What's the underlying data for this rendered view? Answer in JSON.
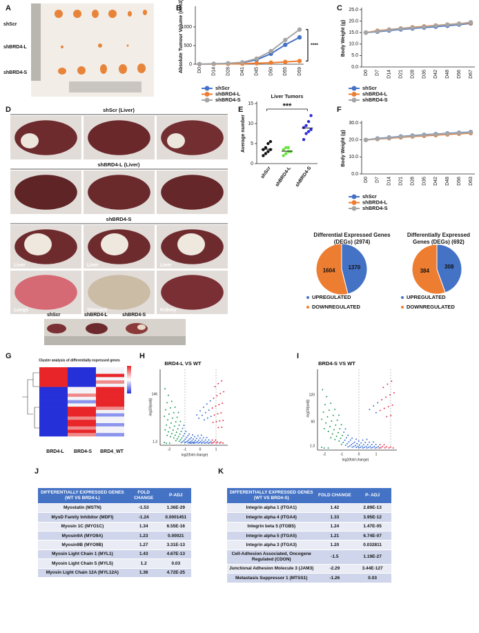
{
  "panel_labels": [
    "A",
    "B",
    "C",
    "D",
    "E",
    "F",
    "G",
    "H",
    "I",
    "J",
    "K"
  ],
  "photo_a": {
    "rows": [
      "shScr",
      "shBRD4-L",
      "shBRD4-S"
    ]
  },
  "photo_d": {
    "titles": [
      "shScr (Liver)",
      "shBRD4-L (Liver)",
      "shBRD4-S"
    ],
    "tissues": [
      "Liver",
      "Liver",
      "Liver",
      "Lungs",
      "Stomach",
      "Kidney"
    ],
    "bottom": [
      "shScr",
      "shBRD4-L",
      "shBRD4-S"
    ]
  },
  "heatmap": {
    "title": "Cluster analysis of differentially expressed genes",
    "columns": [
      "BRD4-L",
      "BRD4-S",
      "BRD4_WT"
    ]
  },
  "volcano_h": {
    "title": "BRD4-L VS WT",
    "y_label": "-log10(padj)",
    "x_label": "log2(fold change)",
    "yticks": [
      "146",
      "1.3"
    ],
    "xticks": [
      "-2",
      "-1",
      "0",
      "1"
    ]
  },
  "volcano_i": {
    "title": "BRD4-S VS WT",
    "y_label": "-log10(padj)",
    "x_label": "log2(fold change)",
    "yticks": [
      "120",
      "60",
      "1.3"
    ],
    "xticks": [
      "-2",
      "-1",
      "0",
      "1"
    ]
  },
  "chart_data": [
    {
      "type": "line",
      "y_label": "Absolute Tumour Volume (mm3)",
      "categories": [
        "D0",
        "D14",
        "D28",
        "D41",
        "D45",
        "D50",
        "D55",
        "D59"
      ],
      "series": [
        {
          "name": "shScr",
          "color": "#4472c4",
          "values": [
            0,
            10,
            20,
            40,
            120,
            280,
            520,
            720
          ]
        },
        {
          "name": "shBRD4-L",
          "color": "#ed7d31",
          "values": [
            0,
            5,
            10,
            15,
            25,
            40,
            60,
            85
          ]
        },
        {
          "name": "shBRD4-S",
          "color": "#a5a5a5",
          "values": [
            0,
            10,
            25,
            50,
            150,
            350,
            650,
            930
          ]
        }
      ],
      "ylim": [
        0,
        1500
      ],
      "yticks": [
        0,
        500,
        1000
      ],
      "annotation": "****"
    },
    {
      "type": "line",
      "y_label": "Body Weight (g)",
      "categories": [
        "D0",
        "D7",
        "D14",
        "D21",
        "D28",
        "D35",
        "D42",
        "D48",
        "D56",
        "D67"
      ],
      "series": [
        {
          "name": "shScr",
          "color": "#4472c4",
          "values": [
            15,
            15.4,
            15.9,
            16.4,
            16.8,
            17.2,
            17.6,
            18,
            18.5,
            19
          ]
        },
        {
          "name": "shBRD4-L",
          "color": "#ed7d31",
          "values": [
            15,
            15.8,
            16.3,
            16.8,
            17.3,
            17.7,
            18.1,
            18.5,
            18.9,
            19.2
          ]
        },
        {
          "name": "shBRD4-S",
          "color": "#a5a5a5",
          "values": [
            15,
            15.6,
            16.2,
            16.7,
            17.1,
            17.5,
            18,
            18.4,
            18.8,
            19.5
          ]
        }
      ],
      "ylim": [
        0,
        25
      ],
      "yticks": [
        {
          "value": 0,
          "label": "0.0"
        },
        {
          "value": 5,
          "label": "5.0"
        },
        {
          "value": 10,
          "label": "10.0"
        },
        {
          "value": 15,
          "label": "15.0"
        },
        {
          "value": 20,
          "label": "20.0"
        },
        {
          "value": 25,
          "label": "25.0"
        }
      ]
    },
    {
      "type": "dot",
      "title": "Liver Tumors",
      "y_label": "Average number",
      "categories": [
        "shScr",
        "shBRD4-L",
        "shBRD4-S"
      ],
      "colors": [
        "#111111",
        "#66e23a",
        "#2a2ad8"
      ],
      "values": [
        [
          2,
          2.5,
          3,
          3.5,
          3.5,
          4,
          5,
          5.5
        ],
        [
          2,
          2.5,
          3,
          3,
          3.5,
          4,
          4
        ],
        [
          6,
          7.5,
          8,
          8.5,
          9,
          9.5,
          10.5,
          12
        ]
      ],
      "means": [
        3.6,
        3.1,
        8.9
      ],
      "ylim": [
        0,
        15
      ],
      "yticks": [
        0,
        5,
        10,
        15
      ],
      "annotation": "***"
    },
    {
      "type": "line",
      "y_label": "Body Weight (g)",
      "categories": [
        "D0",
        "D7",
        "D14",
        "D21",
        "D28",
        "D35",
        "D42",
        "D48",
        "D56",
        "D63"
      ],
      "series": [
        {
          "name": "shScr",
          "color": "#4472c4",
          "values": [
            20,
            20.8,
            21.4,
            22,
            22.5,
            23,
            23.4,
            23.8,
            24.2,
            24.6
          ]
        },
        {
          "name": "shBRD4-L",
          "color": "#ed7d31",
          "values": [
            20,
            20.5,
            21,
            21.5,
            22,
            22.4,
            22.8,
            23.2,
            23.6,
            24
          ]
        },
        {
          "name": "shBRD4-S",
          "color": "#a5a5a5",
          "values": [
            20,
            20.6,
            21.2,
            21.8,
            22.3,
            22.8,
            23.2,
            23.6,
            24,
            24.4
          ]
        }
      ],
      "ylim": [
        0,
        30
      ],
      "yticks": [
        {
          "value": 0,
          "label": "0.0"
        },
        {
          "value": 10,
          "label": "10.0"
        },
        {
          "value": 20,
          "label": "20.0"
        },
        {
          "value": 30,
          "label": "30.0"
        }
      ]
    },
    {
      "type": "pie",
      "title": "Differential Expressed Genes (DEGs) (2974)",
      "categories": [
        "UPREGULATED",
        "DOWNREGULATED"
      ],
      "values": [
        1370,
        1604
      ],
      "colors": [
        "#4472c4",
        "#ed7d31"
      ]
    },
    {
      "type": "pie",
      "title": "Differentially Expressed Genes (DEGs) (692)",
      "categories": [
        "UPREGULATED",
        "DOWNREGULATED"
      ],
      "values": [
        308,
        384
      ],
      "colors": [
        "#4472c4",
        "#ed7d31"
      ]
    }
  ],
  "table_j": {
    "header": [
      "DIFFERENTIALLY EXPRESSED GENES (WT VS BRD4-L)",
      "FOLD CHANGE",
      "P-ADJ"
    ],
    "rows": [
      [
        "Myostatin (MSTN)",
        "-1.53",
        "1.36E-29"
      ],
      [
        "MyoD Family Inhibitor (MDFI)",
        "-1.24",
        "0.0001451"
      ],
      [
        "Myosin 1C (MYO1C)",
        "1.34",
        "6.55E-16"
      ],
      [
        "Myosin9A (MYO9A)",
        "1.23",
        "0.00021"
      ],
      [
        "Myosin9B (MYO9B)",
        "1.27",
        "3.31E-13"
      ],
      [
        "Myosin Light Chain 1 (MYL1)",
        "1.43",
        "4.67E-13"
      ],
      [
        "Myosin Light Chain 5 (MYL5)",
        "1.2",
        "0.03"
      ],
      [
        "Myosin Light Chain 12A (MYL12A)",
        "1.36",
        "4.72E-25"
      ]
    ]
  },
  "table_k": {
    "header": [
      "DIFFERENTIALLY EXPRESSED GENES (WT VS BRD4-S)",
      "FOLD CHANGE",
      "P- ADJ"
    ],
    "rows": [
      [
        "Integrin alpha 1 (ITGA1)",
        "1.42",
        "2.89E-13"
      ],
      [
        "Integrin alpha 4 (ITGA4)",
        "1.33",
        "3.95E-12"
      ],
      [
        "Integrin beta 5 (ITGB5)",
        "1.24",
        "1.47E-05"
      ],
      [
        "Integrin alpha 5 (ITGA5)",
        "1.21",
        "6.74E-07"
      ],
      [
        "Integrin alpha 3 (ITGA3)",
        "1.20",
        "0.032811"
      ],
      [
        "Cell-Adhesion Associated, Oncogene Regulated (CDON)",
        "-1.5",
        "1.19E-27"
      ],
      [
        "Junctional Adhesion Molecule 3 (JAM3)",
        "-2.29",
        "3.44E-127"
      ],
      [
        "Metastasis Suppressor 1 (MTSS1)",
        "-1.26",
        "0.03"
      ]
    ]
  }
}
